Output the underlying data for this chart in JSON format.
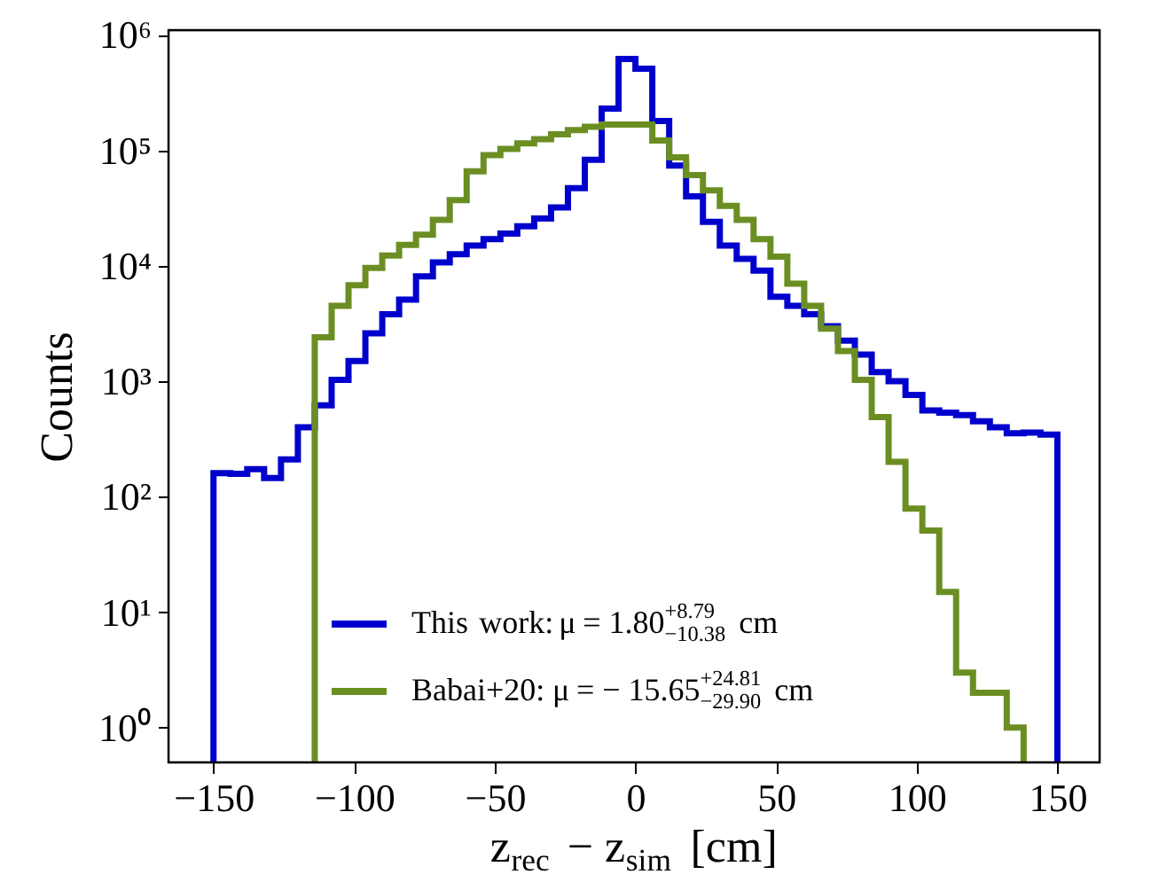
{
  "chart_data": {
    "type": "histogram",
    "xlabel": "z$_{rec}$ − z$_{sim}$ [cm]",
    "ylabel": "Counts",
    "bins": [
      -150,
      -144,
      -138,
      -132,
      -126,
      -120,
      -114,
      -108,
      -102,
      -96,
      -90,
      -84,
      -78,
      -72,
      -66,
      -60,
      -54,
      -48,
      -42,
      -36,
      -30,
      -24,
      -18,
      -12,
      -6,
      0,
      6,
      12,
      18,
      24,
      30,
      36,
      42,
      48,
      54,
      60,
      66,
      72,
      78,
      84,
      90,
      96,
      102,
      108,
      114,
      120,
      126,
      132,
      138,
      144,
      150
    ],
    "series": [
      {
        "name": "This work: μ = 1.80$^{+8.79}$$_{−10.38}$ cm",
        "color": "#0000cc",
        "values": [
          160,
          158,
          173,
          145,
          210,
          400,
          620,
          1030,
          1500,
          2600,
          3800,
          5100,
          8100,
          10700,
          12600,
          15000,
          17000,
          19000,
          22000,
          25700,
          32000,
          47000,
          83000,
          230000,
          620000,
          510000,
          180000,
          74000,
          40000,
          24000,
          15000,
          11500,
          9100,
          5400,
          4500,
          3800,
          3000,
          2250,
          1700,
          1200,
          1000,
          760,
          560,
          535,
          510,
          450,
          400,
          355,
          360,
          345
        ]
      },
      {
        "name": "Babai+20: μ = − 15.65$^{+24.81}$$_{−29.90}$ cm",
        "color": "#6b8e23",
        "bins": [
          -114,
          -108,
          -102,
          -96,
          -90,
          -84,
          -78,
          -72,
          -66,
          -60,
          -54,
          -48,
          -42,
          -36,
          -30,
          -24,
          -18,
          -12,
          -6,
          0,
          6,
          12,
          18,
          24,
          30,
          36,
          42,
          48,
          54,
          60,
          66,
          72,
          78,
          84,
          90,
          96,
          102,
          108,
          114,
          120,
          126,
          132,
          138
        ],
        "values": [
          2400,
          4500,
          6800,
          9600,
          12300,
          15200,
          18600,
          25000,
          37000,
          66000,
          91000,
          103000,
          115000,
          125000,
          138000,
          150000,
          160000,
          167000,
          167000,
          167000,
          122000,
          87000,
          61000,
          45000,
          33000,
          25000,
          17000,
          12000,
          7000,
          4500,
          2850,
          1830,
          1030,
          490,
          200,
          79,
          51,
          15,
          3,
          2,
          2,
          1
        ]
      }
    ],
    "log": "y",
    "xlim": [
      -166,
      165
    ],
    "xticks": [
      -150,
      -100,
      -50,
      0,
      50,
      100,
      150
    ],
    "ylim": [
      0.5,
      1100000
    ],
    "yticks": [
      {
        "value": 1,
        "label": "10⁰"
      },
      {
        "value": 10,
        "label": "10¹"
      },
      {
        "value": 100,
        "label": "10²"
      },
      {
        "value": 1000,
        "label": "10³"
      },
      {
        "value": 10000,
        "label": "10⁴"
      },
      {
        "value": 100000,
        "label": "10⁵"
      },
      {
        "value": 1000000,
        "label": "10⁶"
      }
    ],
    "grid": false,
    "legend": "bottom"
  }
}
